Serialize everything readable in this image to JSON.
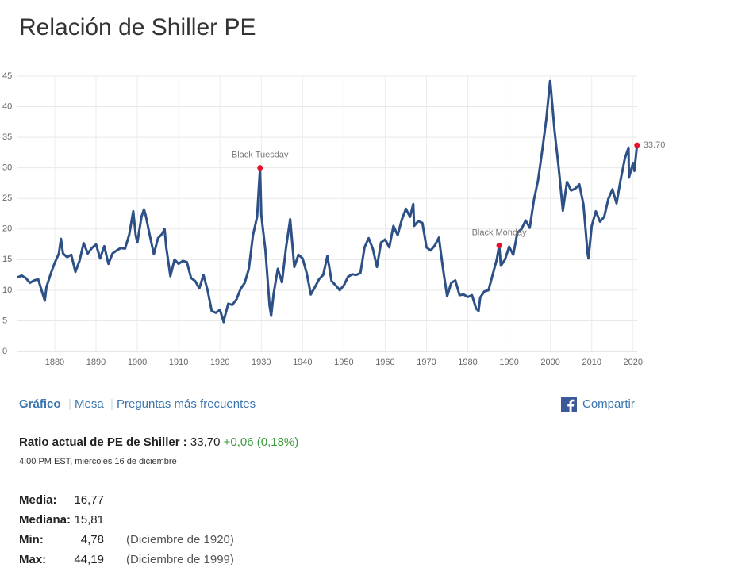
{
  "chart_data": {
    "type": "line",
    "title": "Relación de Shiller PE",
    "color": "#2d5086",
    "grid": true,
    "xlim": [
      1871,
      2021
    ],
    "xticks": [
      1880,
      1890,
      1900,
      1910,
      1920,
      1930,
      1940,
      1950,
      1960,
      1970,
      1980,
      1990,
      2000,
      2010,
      2020
    ],
    "ylim": [
      0,
      45
    ],
    "yticks": [
      0,
      5,
      10,
      15,
      20,
      25,
      30,
      35,
      40,
      45
    ],
    "x": [
      1871,
      1872,
      1873,
      1874,
      1875,
      1876,
      1877,
      1877.6,
      1878,
      1879,
      1880,
      1881,
      1881.5,
      1882,
      1883,
      1884,
      1885,
      1886,
      1887,
      1888,
      1889,
      1890,
      1891,
      1892,
      1893,
      1894,
      1895,
      1896,
      1897,
      1898,
      1899,
      1899.6,
      1900,
      1901,
      1901.6,
      1902,
      1903,
      1904,
      1905,
      1906,
      1906.6,
      1907,
      1908,
      1909,
      1910,
      1911,
      1912,
      1913,
      1914,
      1915,
      1916,
      1917,
      1918,
      1919,
      1920,
      1920.9,
      1921,
      1922,
      1923,
      1924,
      1925,
      1926,
      1927,
      1928,
      1929,
      1929.7,
      1930,
      1931,
      1932,
      1932.4,
      1933,
      1934,
      1935,
      1936,
      1937,
      1938,
      1939,
      1940,
      1941,
      1942,
      1943,
      1944,
      1945,
      1946,
      1947,
      1948,
      1949,
      1950,
      1951,
      1952,
      1953,
      1954,
      1955,
      1956,
      1957,
      1958,
      1959,
      1960,
      1961,
      1962,
      1963,
      1964,
      1965,
      1966,
      1966.8,
      1967,
      1968,
      1969,
      1970,
      1971,
      1972,
      1973,
      1974,
      1975,
      1976,
      1977,
      1978,
      1979,
      1980,
      1981,
      1982,
      1982.6,
      1983,
      1984,
      1985,
      1986,
      1987,
      1987.6,
      1988,
      1989,
      1990,
      1991,
      1992,
      1993,
      1994,
      1995,
      1996,
      1997,
      1998,
      1999,
      1999.9,
      2000,
      2001,
      2002,
      2003,
      2004,
      2005,
      2006,
      2007,
      2008,
      2009,
      2009.2,
      2010,
      2011,
      2012,
      2013,
      2014,
      2015,
      2016,
      2017,
      2018,
      2018.9,
      2019,
      2020,
      2020.3,
      2020.96
    ],
    "values": [
      12.1,
      12.4,
      12.0,
      11.2,
      11.6,
      11.8,
      9.6,
      8.3,
      10.5,
      12.6,
      14.5,
      16.0,
      18.4,
      16.0,
      15.4,
      15.8,
      13.0,
      14.8,
      17.7,
      16.0,
      16.9,
      17.5,
      15.2,
      17.2,
      14.3,
      16.0,
      16.5,
      16.9,
      16.8,
      19.0,
      22.9,
      19.0,
      17.8,
      22.0,
      23.2,
      22.3,
      19.0,
      15.9,
      18.5,
      19.2,
      20.0,
      17.0,
      12.3,
      15.0,
      14.3,
      14.8,
      14.6,
      12.0,
      11.5,
      10.3,
      12.5,
      10.0,
      6.6,
      6.3,
      6.8,
      4.78,
      5.2,
      7.8,
      7.6,
      8.5,
      10.2,
      11.2,
      13.5,
      19.0,
      22.0,
      30.0,
      22.3,
      16.5,
      7.5,
      5.8,
      9.5,
      13.5,
      11.3,
      17.0,
      21.6,
      13.8,
      15.8,
      15.2,
      12.8,
      9.3,
      10.5,
      11.8,
      12.5,
      15.6,
      11.5,
      10.8,
      10.0,
      10.8,
      12.2,
      12.6,
      12.5,
      12.8,
      17.0,
      18.5,
      16.8,
      13.8,
      17.8,
      18.3,
      17.0,
      20.5,
      19.0,
      21.5,
      23.3,
      22.0,
      24.1,
      20.5,
      21.3,
      21.0,
      17.0,
      16.5,
      17.3,
      18.6,
      13.5,
      9.0,
      11.2,
      11.6,
      9.2,
      9.3,
      8.9,
      9.2,
      7.0,
      6.6,
      8.8,
      9.8,
      10.0,
      12.5,
      15.0,
      17.3,
      14.0,
      15.0,
      17.1,
      15.8,
      19.4,
      20.0,
      21.4,
      20.2,
      24.8,
      28.0,
      32.8,
      38.0,
      44.19,
      43.8,
      36.0,
      30.0,
      23.0,
      27.7,
      26.3,
      26.6,
      27.3,
      24.0,
      16.0,
      15.2,
      20.5,
      22.9,
      21.2,
      22.0,
      24.9,
      26.5,
      24.2,
      28.1,
      31.5,
      33.3,
      28.4,
      30.8,
      29.5,
      33.7
    ],
    "annotations": [
      {
        "text": "Black Tuesday",
        "x": 1929.7,
        "y": 30
      },
      {
        "text": "Black Monday",
        "x": 1987.6,
        "y": 17.3
      },
      {
        "text": "33.70",
        "x": 2020.96,
        "y": 33.7
      }
    ]
  },
  "nav": {
    "tabs": [
      "Gráfico",
      "Mesa",
      "Preguntas más frecuentes"
    ],
    "share": "Compartir"
  },
  "current": {
    "label": "Ratio actual de PE de Shiller :",
    "value": "33,70",
    "change": "+0,06 (0,18%)",
    "timestamp": "4:00 PM EST, miércoles 16 de diciembre"
  },
  "stats": [
    {
      "label": "Media:",
      "value": "16,77"
    },
    {
      "label": "Mediana:",
      "value": "15,81"
    },
    {
      "label": "Min:",
      "value": "4,78",
      "note": "(Diciembre de 1920)"
    },
    {
      "label": "Max:",
      "value": "44,19",
      "note": "(Diciembre de 1999)"
    }
  ]
}
